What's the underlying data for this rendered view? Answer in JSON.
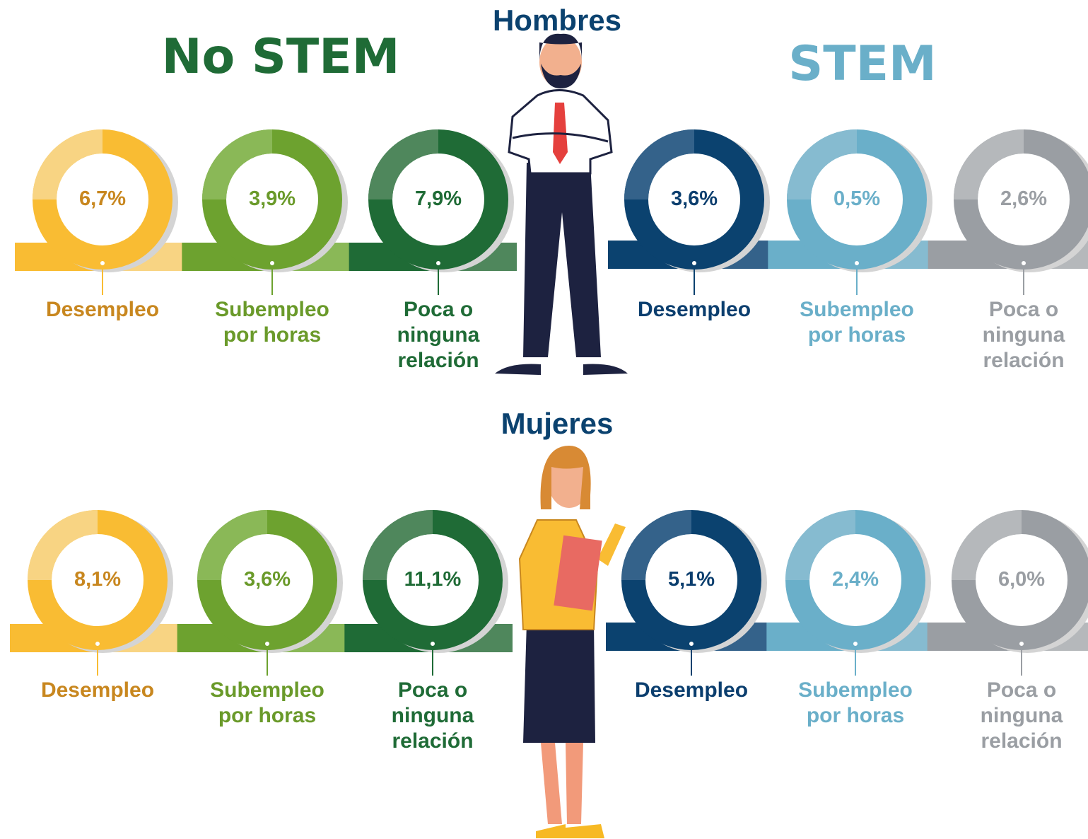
{
  "headings": {
    "no_stem": "No STEM",
    "stem": "STEM"
  },
  "groups": [
    {
      "title": "Hombres",
      "no_stem": [
        {
          "value": "6,7%",
          "label": "Desempleo"
        },
        {
          "value": "3,9%",
          "label": "Subempleo por horas"
        },
        {
          "value": "7,9%",
          "label": "Poca o ninguna relación"
        }
      ],
      "stem": [
        {
          "value": "3,6%",
          "label": "Desempleo"
        },
        {
          "value": "0,5%",
          "label": "Subempleo por horas"
        },
        {
          "value": "2,6%",
          "label": "Poca o ninguna relación"
        }
      ]
    },
    {
      "title": "Mujeres",
      "no_stem": [
        {
          "value": "8,1%",
          "label": "Desempleo"
        },
        {
          "value": "3,6%",
          "label": "Subempleo por horas"
        },
        {
          "value": "11,1%",
          "label": "Poca o ninguna relación"
        }
      ],
      "stem": [
        {
          "value": "5,1%",
          "label": "Desempleo"
        },
        {
          "value": "2,4%",
          "label": "Subempleo por horas"
        },
        {
          "value": "6,0%",
          "label": "Poca o ninguna relación"
        }
      ]
    }
  ]
}
